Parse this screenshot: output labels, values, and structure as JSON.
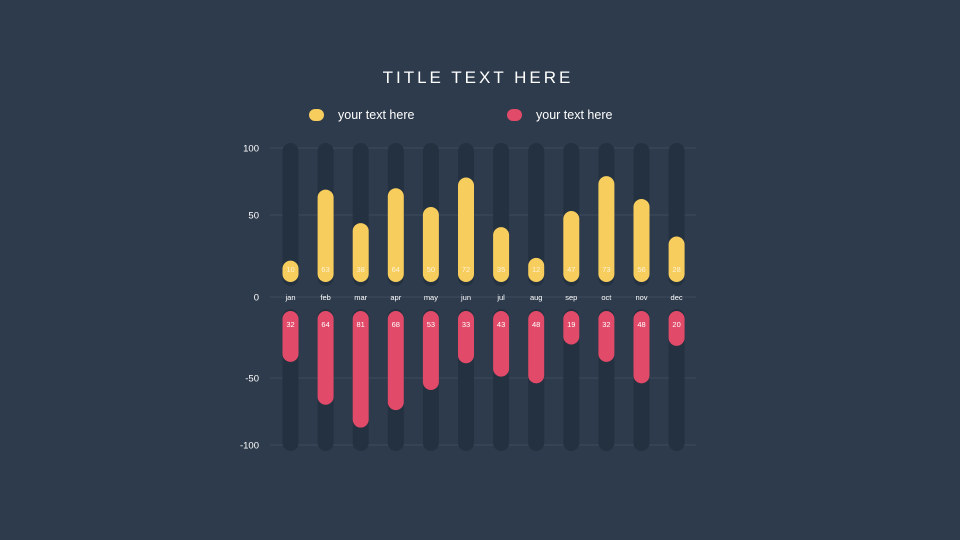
{
  "title": "TITLE TEXT HERE",
  "colors": {
    "background": "#2e3b4c",
    "track": "#243140",
    "series1": "#f7cd5d",
    "series2": "#e14a68",
    "grid": "#3d4b5c",
    "text": "#ffffff"
  },
  "chart_data": {
    "type": "bar",
    "title": "TITLE TEXT HERE",
    "xlabel": "",
    "ylabel": "",
    "ylim": [
      -100,
      100
    ],
    "yticks": [
      100,
      50,
      0,
      -50,
      -100
    ],
    "grid": true,
    "legend": "top",
    "categories": [
      "jan",
      "feb",
      "mar",
      "apr",
      "may",
      "jun",
      "jul",
      "aug",
      "sep",
      "oct",
      "nov",
      "dec"
    ],
    "series": [
      {
        "name": "your text here",
        "color": "#f7cd5d",
        "values": [
          10,
          63,
          38,
          64,
          50,
          72,
          35,
          12,
          47,
          73,
          56,
          28
        ]
      },
      {
        "name": "your text here",
        "color": "#e14a68",
        "values": [
          32,
          64,
          81,
          68,
          53,
          33,
          43,
          48,
          19,
          32,
          48,
          20
        ]
      }
    ]
  }
}
